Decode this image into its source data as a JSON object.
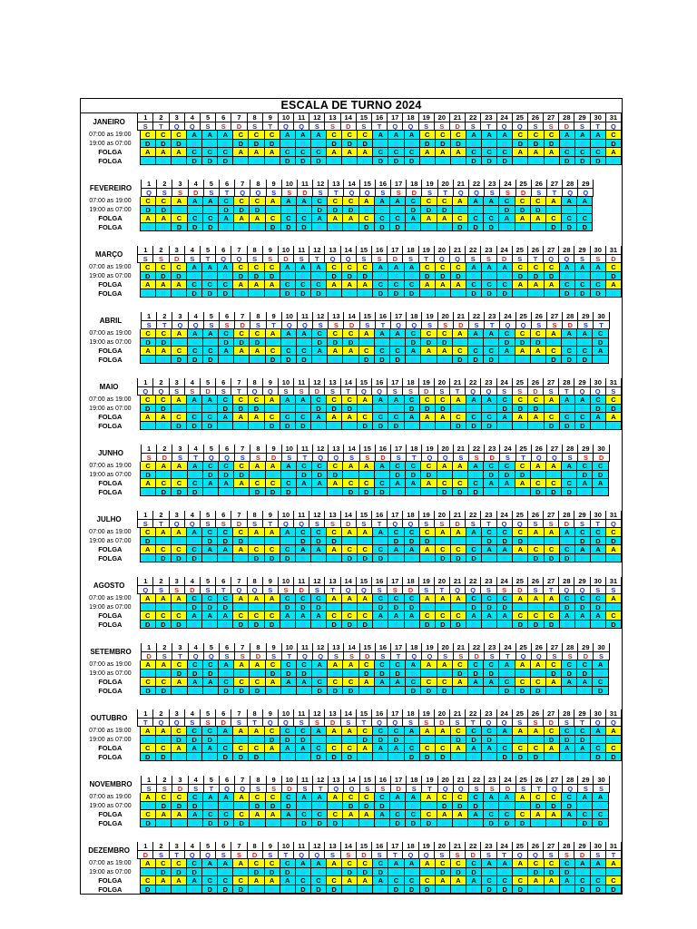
{
  "title": "ESCALA DE TURNO 2024",
  "labels": {
    "day_shift": "07:00 as 19:00",
    "night_shift": "19:00 as 07:00",
    "folga": "FOLGA"
  },
  "colors": {
    "yellow": "#ffff00",
    "cyan": "#00e5f2",
    "weekday_blue": "#1f2fd6",
    "weekend_red": "#e0201c"
  },
  "months": [
    {
      "name": "JANEIRO",
      "days": 31,
      "weekdays": "STQQSSDSTQQSSDSTQQSSDSTQQSSDSTQ",
      "rows": [
        "CCCAAACCCAAACCCAAACCCAAACCCAAAC",
        "DDDBBBDDDBBBDDDBBBDDDBBBDDDBBBD",
        "AAACCCAAACCCAAACCCAAACCCAAACCCA",
        "BBBDDDBBBDDDBBBDDDBBBDDDBBBDDDB"
      ]
    },
    {
      "name": "FEVEREIRO",
      "days": 29,
      "weekdays": "QSSDSTQQSSDSTQQSSDSTQQSSDSTQQ",
      "rows": [
        "CCAAACCCAAACCCAAACCCAAACCCAAA",
        "DDBBBDDDBBBDDDBBBDDDBBBDDDBBB",
        "AACCCAAACCCAAACCCAAACCCAAACCC",
        "BBDDDBBBDDDBBBDDDBBBDDDBBBDDD"
      ]
    },
    {
      "name": "MARÇO",
      "days": 31,
      "weekdays": "SSDSTQQSSDSTQQSSDSTQQSSDSTQQSSD",
      "rows": [
        "CCCAAACCCAAACCCAAACCCAAACCCAAAC",
        "DDDBBBDDDBBBDDDBBBDDDBBBDDDBBBD",
        "AAACCCAAACCCAAACCCAAACCCAAACCCA",
        "BBBDDDBBBDDDBBBDDDBBBDDDBBBDDDB"
      ]
    },
    {
      "name": "ABRIL",
      "days": 30,
      "weekdays": "STQQSSDSTQQSSDSTQQSSDSTQQSSDST",
      "rows": [
        "CCAAACCCAAACCCAAACCCAAACCCAAAC",
        "DDBBBDDDBBBDDDBBBDDDBBBDDDBBBD",
        "AACCCAAACCCAAACCCAAACCCAAACCCA",
        "BBDDDBBBDDDBBBDDDBBBDDDBBBDDDB"
      ]
    },
    {
      "name": "MAIO",
      "days": 31,
      "weekdays": "QQSSDSTQQSSDSTQQSSDSTQQSSDSTQQS",
      "rows": [
        "CCAAACCCAAACCCAAACCCAAACCCAAACC",
        "DDBBBDDDBBBDDDBBBDDDBBBDDDBBBDD",
        "AACCCAAACCCAAACCCAAACCCAAACCCAA",
        "BBDDDBBBDDDBBBDDDBBBDDDBBBDDDBB"
      ]
    },
    {
      "name": "JUNHO",
      "days": 30,
      "weekdays": "SDSTQQSSDSTQQSSDSTQQSSDSTQQSSD",
      "rows": [
        "CAAACCCAAACCCAAACCCAAACCCAAACC",
        "DBBBDDDBBBDDDBBBDDDBBBDDDBBBDD",
        "ACCCAAACCCAAACCCAAACCCAAACCCAA",
        "BDDDBBBDDDBBBDDDBBBDDDBBBDDDBB"
      ]
    },
    {
      "name": "JULHO",
      "days": 31,
      "weekdays": "STQQSSDSTQQSSDSTQQSSDSTQQSSDSTQ",
      "rows": [
        "CAAACCCAAACCCAAACCCAAACCCAAACCC",
        "DBBBDDDBBBDDDBBBDDDBBBDDDBBBDDD",
        "ACCCAAACCCAAACCCAAACCCAAACCCAAA",
        "BDDDBBBDDDBBBDDDBBBDDDBBBDDDBBB"
      ]
    },
    {
      "name": "AGOSTO",
      "days": 31,
      "weekdays": "QSSDSTQQSSDSTQQSSDSTQQSSDSTQQSS",
      "rows": [
        "AAACCCAAACCCAAACCCAAACCCAAACCCA",
        "BBBDDDBBBDDDBBBDDDBBBDDDBBBDDDB",
        "CCCAAACCCAAACCCAAACCCAAACCCAAAC",
        "DDDBBBDDDBBBDDDBBBDDDBBBDDDBBBD"
      ]
    },
    {
      "name": "SETEMBRO",
      "days": 30,
      "weekdays": "DSTQQSSDSTQQSSDSTQQSSDSTQQSSDS",
      "rows": [
        "AACCCAAACCCAAACCCAAACCCAAACCCA",
        "BBDDDBBBDDDBBBDDDBBBDDDBBBDDDB",
        "CCAAACCCAAACCCAAACCCAAACCCAAAC",
        "DDBBBDDDBBBDDDBBBDDDBBBDDDBBBD"
      ]
    },
    {
      "name": "OUTUBRO",
      "days": 31,
      "weekdays": "TQQSSDSTQQSSDSTQQSSDSTQQSSDSTQQ",
      "rows": [
        "AACCCAAACCCAAACCCAAACCCAAACCCAA",
        "BBDDDBBBDDDBBBDDDBBBDDDBBBDDDBB",
        "CCAAACCCAAACCCAAACCCAAACCCAAACC",
        "DDBBBDDDBBBDDDBBBDDDBBBDDDBBBDD"
      ]
    },
    {
      "name": "NOVEMBRO",
      "days": 30,
      "weekdays": "SSDSTQQSSDSTQQSSDSTQQSSDSTQQSS",
      "rows": [
        "ACCCAAACCCAAACCCAAACCCAAACCCAA",
        "BDDDBBBDDDBBBDDDBBBDDDBBBDDDBB",
        "CAAACCCAAACCCAAACCCAAACCCAAACC",
        "DBBBDDDBBBDDDBBBDDDBBBDDDBBBDD"
      ]
    },
    {
      "name": "DEZEMBRO",
      "days": 31,
      "weekdays": "DSTQQSSDSTQQSSDSTQQSSDSTQQSSDST",
      "rows": [
        "ACCCAAACCCAAACCCAAACCCAAACCCAAA",
        "BDDDBBBDDDBBBDDDBBBDDDBBBDDDBBB",
        "CAAACCCAAACCCAAACCCAAACCCAAACCC",
        "DBBBDDDBBBDDDBBBDDDBBBDDDBBBDDD"
      ]
    }
  ]
}
